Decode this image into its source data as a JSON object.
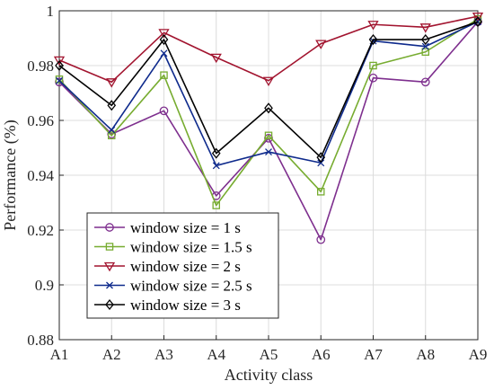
{
  "chart_data": {
    "type": "line",
    "title": "",
    "xlabel": "Activity class",
    "ylabel": "Performance (%)",
    "categories": [
      "A1",
      "A2",
      "A3",
      "A4",
      "A5",
      "A6",
      "A7",
      "A8",
      "A9"
    ],
    "ylim": [
      0.88,
      1.0
    ],
    "yticks": [
      0.88,
      0.9,
      0.92,
      0.94,
      0.96,
      0.98,
      1
    ],
    "ytick_labels": [
      "0.88",
      "0.9",
      "0.92",
      "0.94",
      "0.96",
      "0.98",
      "1"
    ],
    "grid": true,
    "legend_position": "bottom-left",
    "series": [
      {
        "name": "window size = 1 s",
        "color": "#7e2f8e",
        "marker": "circle",
        "values": [
          0.974,
          0.955,
          0.9635,
          0.9325,
          0.9535,
          0.9165,
          0.9755,
          0.974,
          0.996
        ]
      },
      {
        "name": "window size = 1.5 s",
        "color": "#77ac30",
        "marker": "square",
        "values": [
          0.975,
          0.9545,
          0.9765,
          0.929,
          0.9545,
          0.934,
          0.98,
          0.985,
          0.997
        ]
      },
      {
        "name": "window size = 2 s",
        "color": "#a2142f",
        "marker": "triangle-down",
        "values": [
          0.982,
          0.974,
          0.992,
          0.983,
          0.9745,
          0.988,
          0.995,
          0.994,
          0.998
        ]
      },
      {
        "name": "window size = 2.5 s",
        "color": "#0e2a8c",
        "marker": "x",
        "values": [
          0.9745,
          0.9565,
          0.9845,
          0.9435,
          0.9485,
          0.9445,
          0.989,
          0.987,
          0.996
        ]
      },
      {
        "name": "window size = 3 s",
        "color": "#000000",
        "marker": "diamond",
        "values": [
          0.98,
          0.9655,
          0.9895,
          0.948,
          0.9645,
          0.9465,
          0.9895,
          0.9895,
          0.996
        ]
      }
    ]
  }
}
